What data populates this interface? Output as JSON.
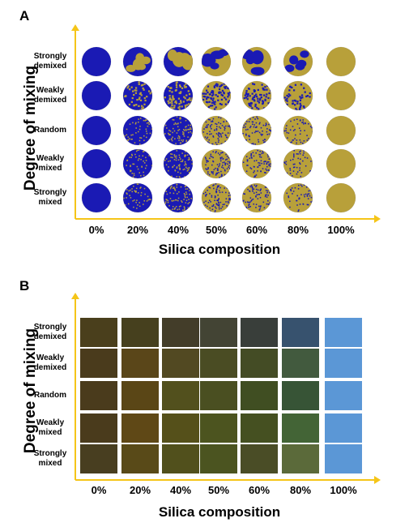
{
  "panel_a": {
    "label": "A",
    "y_axis_title": "Degree of mixing",
    "x_axis_title": "Silica composition",
    "rows": [
      "Strongly\ndemixed",
      "Weakly\ndemixed",
      "Random",
      "Weakly\nmixed",
      "Strongly\nmixed"
    ],
    "columns": [
      "0%",
      "20%",
      "40%",
      "50%",
      "60%",
      "80%",
      "100%"
    ],
    "colors": {
      "blue": "#1a1ab4",
      "gold": "#b8a03a",
      "axis": "#f5c518"
    }
  },
  "panel_b": {
    "label": "B",
    "y_axis_title": "Degree of mixing",
    "x_axis_title": "Silica composition",
    "rows": [
      "Strongly\ndemixed",
      "Weakly\ndemixed",
      "Random",
      "Weakly\nmixed",
      "Strongly\nmixed"
    ],
    "columns": [
      "0%",
      "20%",
      "40%",
      "50%",
      "60%",
      "80%",
      "100%"
    ],
    "cell_colors": [
      [
        "#4a3f1c",
        "#46401e",
        "#433d29",
        "#434434",
        "#393e3a",
        "#37526e",
        "#5b97d6"
      ],
      [
        "#4a3b1c",
        "#5a4619",
        "#524922",
        "#4a4c23",
        "#444c25",
        "#425a3e",
        "#5b97d6"
      ],
      [
        "#4a3b1c",
        "#5a4616",
        "#52501d",
        "#4a4f21",
        "#404e22",
        "#375436",
        "#5b97d6"
      ],
      [
        "#4a3b1c",
        "#5f4816",
        "#55501a",
        "#4c541f",
        "#455021",
        "#436436",
        "#5b97d6"
      ],
      [
        "#483e20",
        "#594a18",
        "#51501c",
        "#4b5420",
        "#4a4d26",
        "#5b6a3a",
        "#5b97d6"
      ]
    ],
    "axis_color": "#f5c518"
  }
}
